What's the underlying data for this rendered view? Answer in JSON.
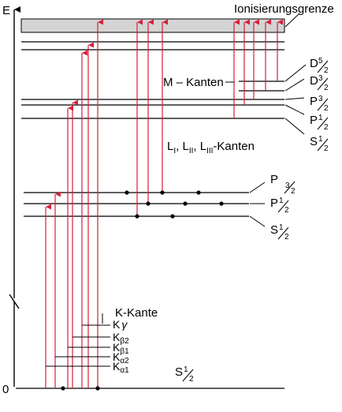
{
  "axis": {
    "energy_label": "E",
    "zero_label": "0"
  },
  "labels": {
    "ionization": "Ionisierungsgrenze",
    "m_edges": "M – Kanten",
    "l_edges": {
      "L": "L",
      "sub1": "I",
      "sep1": ", L",
      "sub2": "II",
      "sep2": ", L",
      "sub3": "III",
      "rest": "-Kanten"
    },
    "k_edge": "K-Kante"
  },
  "k_lines": [
    {
      "base": "K",
      "sub": "γ"
    },
    {
      "base": "K",
      "sub": "β2"
    },
    {
      "base": "K",
      "sub": "β1"
    },
    {
      "base": "K",
      "sub": "α2"
    },
    {
      "base": "K",
      "sub": "α1"
    }
  ],
  "levels": {
    "M": [
      {
        "letter": "D",
        "num": "5",
        "den": "2"
      },
      {
        "letter": "D",
        "num": "3",
        "den": "2"
      },
      {
        "letter": "P",
        "num": "3",
        "den": "2"
      },
      {
        "letter": "P",
        "num": "1",
        "den": "2"
      },
      {
        "letter": "S",
        "num": "1",
        "den": "2"
      }
    ],
    "L": [
      {
        "letter": "P",
        "num": "3",
        "den": "2"
      },
      {
        "letter": "P",
        "num": "1",
        "den": "2"
      },
      {
        "letter": "S",
        "num": "1",
        "den": "2"
      }
    ],
    "K": [
      {
        "letter": "S",
        "num": "1",
        "den": "2"
      }
    ]
  },
  "colors": {
    "line": "#000000",
    "arrow": "#d6203a",
    "continuum": "#d4d4d4"
  }
}
